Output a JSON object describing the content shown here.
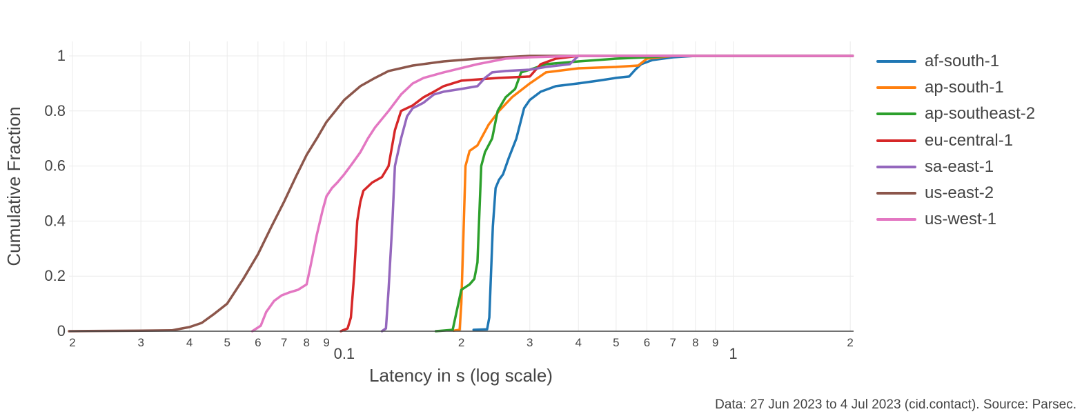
{
  "chart_data": {
    "type": "line",
    "title": "",
    "xlabel": "Latency in s (log scale)",
    "ylabel": "Cumulative Fraction",
    "x_scale": "log",
    "xlim": [
      0.0196,
      2.04
    ],
    "ylim": [
      0,
      1.05
    ],
    "grid": true,
    "legend_position": "right",
    "x_ticks": [
      {
        "value": 0.02,
        "label": "2"
      },
      {
        "value": 0.03,
        "label": "3"
      },
      {
        "value": 0.04,
        "label": "4"
      },
      {
        "value": 0.05,
        "label": "5"
      },
      {
        "value": 0.06,
        "label": "6"
      },
      {
        "value": 0.07,
        "label": "7"
      },
      {
        "value": 0.08,
        "label": "8"
      },
      {
        "value": 0.09,
        "label": "9"
      },
      {
        "value": 0.1,
        "label": "0.1",
        "major": true
      },
      {
        "value": 0.2,
        "label": "2"
      },
      {
        "value": 0.3,
        "label": "3"
      },
      {
        "value": 0.4,
        "label": "4"
      },
      {
        "value": 0.5,
        "label": "5"
      },
      {
        "value": 0.6,
        "label": "6"
      },
      {
        "value": 0.7,
        "label": "7"
      },
      {
        "value": 0.8,
        "label": "8"
      },
      {
        "value": 0.9,
        "label": "9"
      },
      {
        "value": 1,
        "label": "1",
        "major": true
      },
      {
        "value": 2,
        "label": "2"
      }
    ],
    "y_ticks": [
      {
        "value": 0,
        "label": "0"
      },
      {
        "value": 0.2,
        "label": "0.2"
      },
      {
        "value": 0.4,
        "label": "0.4"
      },
      {
        "value": 0.6,
        "label": "0.6"
      },
      {
        "value": 0.8,
        "label": "0.8"
      },
      {
        "value": 1,
        "label": "1"
      }
    ],
    "series": [
      {
        "name": "af-south-1",
        "color": "#1f77b4",
        "points": [
          [
            0.215,
            0.005
          ],
          [
            0.233,
            0.007
          ],
          [
            0.236,
            0.05
          ],
          [
            0.238,
            0.18
          ],
          [
            0.241,
            0.38
          ],
          [
            0.245,
            0.52
          ],
          [
            0.25,
            0.55
          ],
          [
            0.256,
            0.57
          ],
          [
            0.265,
            0.63
          ],
          [
            0.277,
            0.7
          ],
          [
            0.29,
            0.81
          ],
          [
            0.3,
            0.84
          ],
          [
            0.32,
            0.87
          ],
          [
            0.35,
            0.89
          ],
          [
            0.4,
            0.9
          ],
          [
            0.45,
            0.91
          ],
          [
            0.5,
            0.92
          ],
          [
            0.54,
            0.925
          ],
          [
            0.56,
            0.95
          ],
          [
            0.58,
            0.97
          ],
          [
            0.62,
            0.985
          ],
          [
            0.7,
            0.995
          ],
          [
            0.8,
            1.0
          ],
          [
            1.0,
            1.0
          ],
          [
            2.03,
            1.0
          ]
        ]
      },
      {
        "name": "ap-south-1",
        "color": "#ff7f0e",
        "points": [
          [
            0.191,
            0.002
          ],
          [
            0.198,
            0.005
          ],
          [
            0.2,
            0.1
          ],
          [
            0.202,
            0.3
          ],
          [
            0.205,
            0.6
          ],
          [
            0.21,
            0.655
          ],
          [
            0.22,
            0.675
          ],
          [
            0.235,
            0.75
          ],
          [
            0.25,
            0.8
          ],
          [
            0.27,
            0.85
          ],
          [
            0.3,
            0.9
          ],
          [
            0.33,
            0.94
          ],
          [
            0.4,
            0.955
          ],
          [
            0.5,
            0.96
          ],
          [
            0.57,
            0.965
          ],
          [
            0.6,
            0.99
          ],
          [
            0.7,
            1.0
          ],
          [
            1.0,
            1.0
          ],
          [
            2.03,
            1.0
          ]
        ]
      },
      {
        "name": "ap-southeast-2",
        "color": "#2ca02c",
        "points": [
          [
            0.172,
            0.0
          ],
          [
            0.19,
            0.005
          ],
          [
            0.2,
            0.15
          ],
          [
            0.21,
            0.17
          ],
          [
            0.216,
            0.19
          ],
          [
            0.22,
            0.25
          ],
          [
            0.225,
            0.6
          ],
          [
            0.23,
            0.65
          ],
          [
            0.24,
            0.7
          ],
          [
            0.248,
            0.8
          ],
          [
            0.26,
            0.85
          ],
          [
            0.275,
            0.88
          ],
          [
            0.285,
            0.94
          ],
          [
            0.3,
            0.95
          ],
          [
            0.33,
            0.97
          ],
          [
            0.4,
            0.98
          ],
          [
            0.5,
            0.99
          ],
          [
            0.6,
            0.995
          ],
          [
            0.7,
            1.0
          ],
          [
            1.0,
            1.0
          ],
          [
            2.03,
            1.0
          ]
        ]
      },
      {
        "name": "eu-central-1",
        "color": "#d62728",
        "points": [
          [
            0.098,
            0.0
          ],
          [
            0.102,
            0.01
          ],
          [
            0.104,
            0.05
          ],
          [
            0.106,
            0.2
          ],
          [
            0.108,
            0.4
          ],
          [
            0.11,
            0.47
          ],
          [
            0.112,
            0.51
          ],
          [
            0.118,
            0.54
          ],
          [
            0.125,
            0.56
          ],
          [
            0.13,
            0.6
          ],
          [
            0.135,
            0.73
          ],
          [
            0.14,
            0.8
          ],
          [
            0.15,
            0.82
          ],
          [
            0.16,
            0.85
          ],
          [
            0.17,
            0.87
          ],
          [
            0.18,
            0.89
          ],
          [
            0.2,
            0.91
          ],
          [
            0.25,
            0.92
          ],
          [
            0.3,
            0.925
          ],
          [
            0.32,
            0.97
          ],
          [
            0.35,
            0.99
          ],
          [
            0.4,
            1.0
          ],
          [
            1.0,
            1.0
          ],
          [
            2.03,
            1.0
          ]
        ]
      },
      {
        "name": "sa-east-1",
        "color": "#9467bd",
        "points": [
          [
            0.125,
            0.0
          ],
          [
            0.128,
            0.01
          ],
          [
            0.13,
            0.15
          ],
          [
            0.133,
            0.4
          ],
          [
            0.135,
            0.6
          ],
          [
            0.14,
            0.7
          ],
          [
            0.145,
            0.78
          ],
          [
            0.15,
            0.81
          ],
          [
            0.155,
            0.82
          ],
          [
            0.16,
            0.83
          ],
          [
            0.17,
            0.86
          ],
          [
            0.18,
            0.87
          ],
          [
            0.2,
            0.88
          ],
          [
            0.22,
            0.89
          ],
          [
            0.23,
            0.92
          ],
          [
            0.24,
            0.94
          ],
          [
            0.26,
            0.945
          ],
          [
            0.3,
            0.95
          ],
          [
            0.33,
            0.96
          ],
          [
            0.38,
            0.97
          ],
          [
            0.4,
            1.0
          ],
          [
            1.0,
            1.0
          ],
          [
            2.03,
            1.0
          ]
        ]
      },
      {
        "name": "us-east-2",
        "color": "#8c564b",
        "points": [
          [
            0.0196,
            0.0
          ],
          [
            0.03,
            0.002
          ],
          [
            0.036,
            0.003
          ],
          [
            0.04,
            0.015
          ],
          [
            0.043,
            0.03
          ],
          [
            0.046,
            0.06
          ],
          [
            0.05,
            0.1
          ],
          [
            0.055,
            0.19
          ],
          [
            0.06,
            0.28
          ],
          [
            0.065,
            0.38
          ],
          [
            0.07,
            0.47
          ],
          [
            0.075,
            0.56
          ],
          [
            0.08,
            0.64
          ],
          [
            0.085,
            0.7
          ],
          [
            0.09,
            0.76
          ],
          [
            0.1,
            0.84
          ],
          [
            0.11,
            0.89
          ],
          [
            0.12,
            0.92
          ],
          [
            0.13,
            0.945
          ],
          [
            0.15,
            0.965
          ],
          [
            0.18,
            0.98
          ],
          [
            0.22,
            0.99
          ],
          [
            0.3,
            1.0
          ],
          [
            1.0,
            1.0
          ],
          [
            2.03,
            1.0
          ]
        ]
      },
      {
        "name": "us-west-1",
        "color": "#e377c2",
        "points": [
          [
            0.058,
            0.0
          ],
          [
            0.061,
            0.02
          ],
          [
            0.063,
            0.07
          ],
          [
            0.066,
            0.11
          ],
          [
            0.069,
            0.13
          ],
          [
            0.072,
            0.14
          ],
          [
            0.076,
            0.15
          ],
          [
            0.08,
            0.17
          ],
          [
            0.082,
            0.24
          ],
          [
            0.085,
            0.35
          ],
          [
            0.088,
            0.44
          ],
          [
            0.09,
            0.49
          ],
          [
            0.093,
            0.52
          ],
          [
            0.096,
            0.54
          ],
          [
            0.1,
            0.57
          ],
          [
            0.105,
            0.61
          ],
          [
            0.11,
            0.65
          ],
          [
            0.115,
            0.7
          ],
          [
            0.12,
            0.74
          ],
          [
            0.13,
            0.8
          ],
          [
            0.14,
            0.86
          ],
          [
            0.15,
            0.9
          ],
          [
            0.16,
            0.92
          ],
          [
            0.18,
            0.94
          ],
          [
            0.22,
            0.97
          ],
          [
            0.26,
            0.99
          ],
          [
            0.3,
            0.995
          ],
          [
            0.4,
            1.0
          ],
          [
            1.0,
            1.0
          ],
          [
            2.03,
            1.0
          ]
        ]
      }
    ],
    "annotations": [
      "Data: 27 Jun 2023 to 4 Jul 2023 (cid.contact). Source: Parsec."
    ]
  }
}
